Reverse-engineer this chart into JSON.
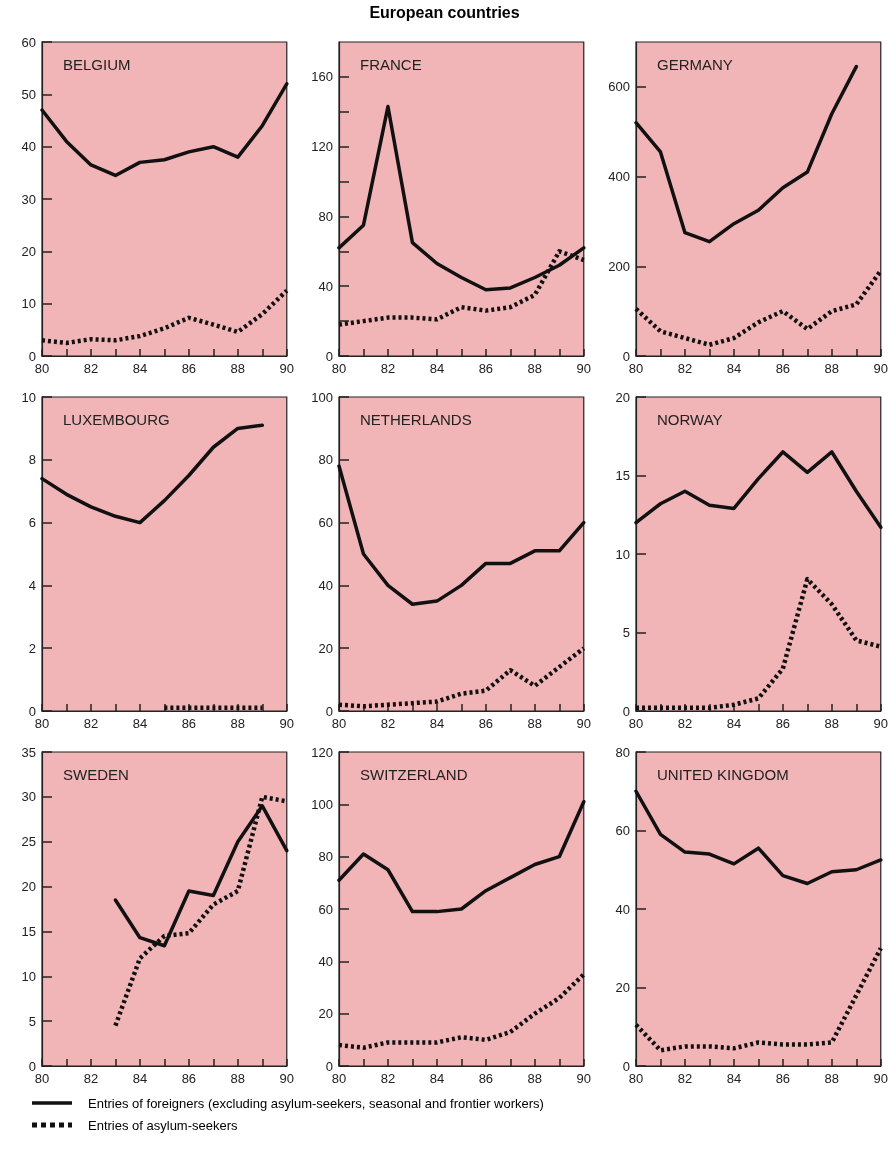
{
  "chart_data": [
    {
      "type": "line",
      "title": "BELGIUM",
      "annotations": [
        "European countries"
      ],
      "legend": "bottom",
      "x": [
        80,
        81,
        82,
        83,
        84,
        85,
        86,
        87,
        88,
        89,
        90
      ],
      "xlim": [
        80,
        90
      ],
      "xticks": [
        80,
        {
          "value": 81,
          "label": null
        },
        82,
        {
          "value": 83,
          "label": null
        },
        84,
        {
          "value": 85,
          "label": null
        },
        86,
        {
          "value": 87,
          "label": null
        },
        88,
        {
          "value": 89,
          "label": null
        },
        90
      ],
      "ylim": [
        0,
        60
      ],
      "yticks": [
        0,
        10,
        20,
        30,
        40,
        50,
        60
      ],
      "series": [
        {
          "name": "Entries of foreigners (excluding asylum-seekers, seasonal and frontier workers)",
          "color": "#111111",
          "line_style": "solid",
          "values": [
            47,
            41,
            36.5,
            34.5,
            37,
            37.5,
            39,
            40,
            38,
            44,
            52
          ]
        },
        {
          "name": "Entries of asylum-seekers",
          "color": "#111111",
          "line_style": "dotted",
          "values": [
            3,
            2.5,
            3.2,
            3,
            3.8,
            5.3,
            7.3,
            6,
            4.6,
            8,
            12.5
          ]
        }
      ]
    },
    {
      "type": "line",
      "title": "FRANCE",
      "x": [
        80,
        81,
        82,
        83,
        84,
        85,
        86,
        87,
        88,
        89,
        90
      ],
      "xlim": [
        80,
        90
      ],
      "xticks": [
        80,
        {
          "value": 81,
          "label": null
        },
        82,
        {
          "value": 83,
          "label": null
        },
        84,
        {
          "value": 85,
          "label": null
        },
        86,
        {
          "value": 87,
          "label": null
        },
        88,
        {
          "value": 89,
          "label": null
        },
        90
      ],
      "ylim": [
        0,
        180
      ],
      "yticks": [
        0,
        {
          "value": 20,
          "label": null
        },
        40,
        {
          "value": 60,
          "label": null
        },
        80,
        {
          "value": 100,
          "label": null
        },
        120,
        {
          "value": 140,
          "label": null
        },
        160
      ],
      "series": [
        {
          "color": "#111111",
          "line_style": "solid",
          "values": [
            62,
            75,
            143,
            65,
            53,
            45,
            38,
            39,
            45,
            52,
            62
          ]
        },
        {
          "color": "#111111",
          "line_style": "dotted",
          "values": [
            18,
            20,
            22,
            22,
            21,
            28,
            26,
            28,
            35,
            60,
            55
          ]
        }
      ]
    },
    {
      "type": "line",
      "title": "GERMANY",
      "x": [
        80,
        81,
        82,
        83,
        84,
        85,
        86,
        87,
        88,
        89,
        90
      ],
      "xlim": [
        80,
        90
      ],
      "xticks": [
        80,
        {
          "value": 81,
          "label": null
        },
        82,
        {
          "value": 83,
          "label": null
        },
        84,
        {
          "value": 85,
          "label": null
        },
        86,
        {
          "value": 87,
          "label": null
        },
        88,
        {
          "value": 89,
          "label": null
        },
        90
      ],
      "ylim": [
        0,
        700
      ],
      "yticks": [
        0,
        200,
        400,
        600
      ],
      "series": [
        {
          "color": "#111111",
          "line_style": "solid",
          "values": [
            520,
            455,
            275,
            255,
            295,
            325,
            375,
            410,
            540,
            645,
            null
          ]
        },
        {
          "color": "#111111",
          "line_style": "dotted",
          "values": [
            105,
            55,
            40,
            25,
            40,
            75,
            100,
            60,
            100,
            115,
            190
          ]
        }
      ]
    },
    {
      "type": "line",
      "title": "LUXEMBOURG",
      "xlim": [
        80,
        90
      ],
      "xticks": [
        80,
        {
          "value": 81,
          "label": null
        },
        82,
        {
          "value": 83,
          "label": null
        },
        84,
        {
          "value": 85,
          "label": null
        },
        86,
        {
          "value": 87,
          "label": null
        },
        88,
        {
          "value": 89,
          "label": null
        },
        90
      ],
      "ylim": [
        0,
        10
      ],
      "yticks": [
        0,
        2,
        4,
        6,
        8,
        10
      ],
      "series": [
        {
          "color": "#111111",
          "line_style": "solid",
          "x": [
            80,
            81,
            82,
            83,
            84,
            85,
            86,
            87,
            88,
            89
          ],
          "values": [
            7.4,
            6.9,
            6.5,
            6.2,
            6.0,
            6.7,
            7.5,
            8.4,
            9.0,
            9.1
          ]
        },
        {
          "color": "#111111",
          "line_style": "dotted",
          "x": [
            85,
            86,
            87,
            88,
            89
          ],
          "values": [
            0.1,
            0.1,
            0.1,
            0.1,
            0.1
          ]
        }
      ]
    },
    {
      "type": "line",
      "title": "NETHERLANDS",
      "x": [
        80,
        81,
        82,
        83,
        84,
        85,
        86,
        87,
        88,
        89,
        90
      ],
      "xlim": [
        80,
        90
      ],
      "xticks": [
        80,
        {
          "value": 81,
          "label": null
        },
        82,
        {
          "value": 83,
          "label": null
        },
        84,
        {
          "value": 85,
          "label": null
        },
        86,
        {
          "value": 87,
          "label": null
        },
        88,
        {
          "value": 89,
          "label": null
        },
        90
      ],
      "ylim": [
        0,
        100
      ],
      "yticks": [
        0,
        20,
        40,
        60,
        80,
        100
      ],
      "series": [
        {
          "color": "#111111",
          "line_style": "solid",
          "values": [
            78,
            50,
            40,
            34,
            35,
            40,
            47,
            47,
            51,
            51,
            60
          ]
        },
        {
          "color": "#111111",
          "line_style": "dotted",
          "values": [
            2,
            1.5,
            2,
            2.5,
            3,
            5.5,
            6.5,
            13,
            8,
            14,
            20
          ]
        }
      ]
    },
    {
      "type": "line",
      "title": "NORWAY",
      "x": [
        80,
        81,
        82,
        83,
        84,
        85,
        86,
        87,
        88,
        89,
        90
      ],
      "xlim": [
        80,
        90
      ],
      "xticks": [
        80,
        {
          "value": 81,
          "label": null
        },
        82,
        {
          "value": 83,
          "label": null
        },
        84,
        {
          "value": 85,
          "label": null
        },
        86,
        {
          "value": 87,
          "label": null
        },
        88,
        {
          "value": 89,
          "label": null
        },
        90
      ],
      "ylim": [
        0,
        20
      ],
      "yticks": [
        0,
        5,
        10,
        15,
        20
      ],
      "series": [
        {
          "color": "#111111",
          "line_style": "solid",
          "values": [
            12,
            13.2,
            14,
            13.1,
            12.9,
            14.8,
            16.5,
            15.2,
            16.5,
            14,
            11.7
          ]
        },
        {
          "color": "#111111",
          "line_style": "dotted",
          "values": [
            0.2,
            0.2,
            0.2,
            0.2,
            0.4,
            0.8,
            2.7,
            8.4,
            6.8,
            4.5,
            4.1
          ]
        }
      ]
    },
    {
      "type": "line",
      "title": "SWEDEN",
      "x": [
        83,
        84,
        85,
        86,
        87,
        88,
        89,
        90
      ],
      "xlim": [
        80,
        90
      ],
      "xticks": [
        80,
        {
          "value": 81,
          "label": null
        },
        82,
        {
          "value": 83,
          "label": null
        },
        84,
        {
          "value": 85,
          "label": null
        },
        86,
        {
          "value": 87,
          "label": null
        },
        88,
        {
          "value": 89,
          "label": null
        },
        90
      ],
      "ylim": [
        0,
        35
      ],
      "yticks": [
        0,
        5,
        10,
        15,
        20,
        25,
        30,
        35
      ],
      "series": [
        {
          "color": "#111111",
          "line_style": "solid",
          "values": [
            18.5,
            14.3,
            13.4,
            19.5,
            19,
            25,
            29,
            24
          ]
        },
        {
          "color": "#111111",
          "line_style": "dotted",
          "values": [
            4.5,
            12,
            14.5,
            14.8,
            18,
            19.5,
            30,
            29.5
          ]
        }
      ]
    },
    {
      "type": "line",
      "title": "SWITZERLAND",
      "x": [
        80,
        81,
        82,
        83,
        84,
        85,
        86,
        87,
        88,
        89,
        90
      ],
      "xlim": [
        80,
        90
      ],
      "xticks": [
        80,
        {
          "value": 81,
          "label": null
        },
        82,
        {
          "value": 83,
          "label": null
        },
        84,
        {
          "value": 85,
          "label": null
        },
        86,
        {
          "value": 87,
          "label": null
        },
        88,
        {
          "value": 89,
          "label": null
        },
        90
      ],
      "ylim": [
        0,
        120
      ],
      "yticks": [
        0,
        20,
        40,
        60,
        80,
        100,
        120
      ],
      "series": [
        {
          "color": "#111111",
          "line_style": "solid",
          "values": [
            71,
            81,
            75,
            59,
            59,
            60,
            67,
            72,
            77,
            80,
            101
          ]
        },
        {
          "color": "#111111",
          "line_style": "dotted",
          "values": [
            8,
            7,
            9,
            9,
            9,
            11,
            10,
            13,
            20,
            26,
            35
          ]
        }
      ]
    },
    {
      "type": "line",
      "title": "UNITED KINGDOM",
      "x": [
        80,
        81,
        82,
        83,
        84,
        85,
        86,
        87,
        88,
        89,
        90
      ],
      "xlim": [
        80,
        90
      ],
      "xticks": [
        80,
        {
          "value": 81,
          "label": null
        },
        82,
        {
          "value": 83,
          "label": null
        },
        84,
        {
          "value": 85,
          "label": null
        },
        86,
        {
          "value": 87,
          "label": null
        },
        88,
        {
          "value": 89,
          "label": null
        },
        90
      ],
      "ylim": [
        0,
        80
      ],
      "yticks": [
        0,
        20,
        40,
        60,
        80
      ],
      "series": [
        {
          "color": "#111111",
          "line_style": "solid",
          "values": [
            70,
            59,
            54.5,
            54,
            51.5,
            55.5,
            48.5,
            46.5,
            49.5,
            50,
            52.5
          ]
        },
        {
          "color": "#111111",
          "line_style": "dotted",
          "values": [
            10.5,
            4,
            5,
            5,
            4.5,
            6,
            5.5,
            5.5,
            6,
            18,
            30
          ]
        }
      ]
    }
  ]
}
